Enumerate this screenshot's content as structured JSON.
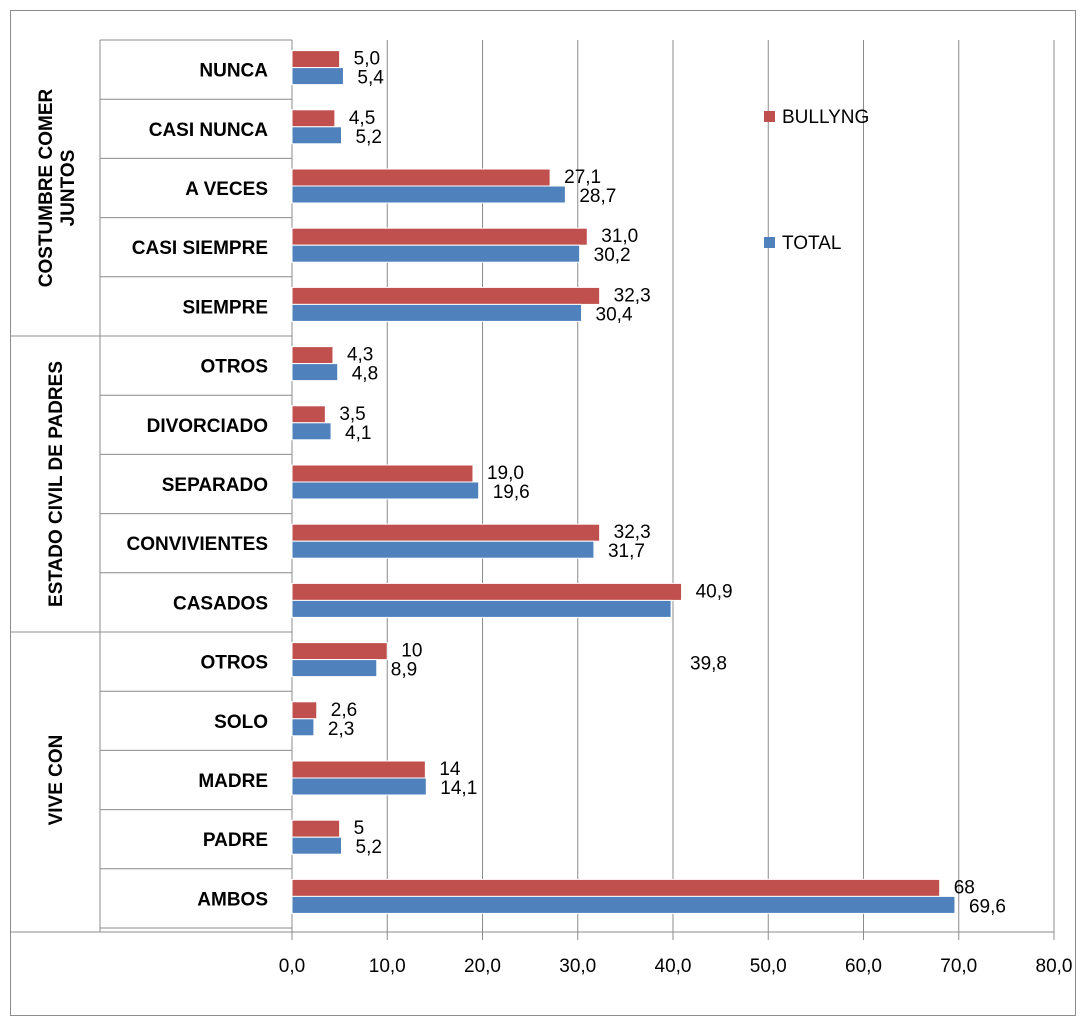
{
  "chart_data": {
    "type": "bar",
    "orientation": "horizontal",
    "groups": [
      {
        "label": "COSTUMBRE COMER JUNTOS",
        "categories": [
          "NUNCA",
          "CASI NUNCA",
          "A VECES",
          "CASI SIEMPRE",
          "SIEMPRE"
        ]
      },
      {
        "label": "ESTADO CIVIL DE PADRES",
        "categories": [
          "OTROS",
          "DIVORCIADO",
          "SEPARADO",
          "CONVIVIENTES",
          "CASADOS"
        ]
      },
      {
        "label": "VIVE CON",
        "categories": [
          "OTROS",
          "SOLO",
          "MADRE",
          "PADRE",
          "AMBOS"
        ]
      }
    ],
    "categories": [
      "NUNCA",
      "CASI NUNCA",
      "A VECES",
      "CASI SIEMPRE",
      "SIEMPRE",
      "OTROS",
      "DIVORCIADO",
      "SEPARADO",
      "CONVIVIENTES",
      "CASADOS",
      "OTROS",
      "SOLO",
      "MADRE",
      "PADRE",
      "AMBOS"
    ],
    "series": [
      {
        "name": "BULLYNG",
        "color": "#c0504d",
        "values": [
          5.0,
          4.5,
          27.1,
          31.0,
          32.3,
          4.3,
          3.5,
          19.0,
          32.3,
          40.9,
          10,
          2.6,
          14,
          5,
          68
        ],
        "labels": [
          "5,0",
          "4,5",
          "27,1",
          "31,0",
          "32,3",
          "4,3",
          "3,5",
          "19,0",
          "32,3",
          "40,9",
          "10",
          "2,6",
          "14",
          "5",
          "68"
        ]
      },
      {
        "name": "TOTAL",
        "color": "#4f81bd",
        "values": [
          5.4,
          5.2,
          28.7,
          30.2,
          30.4,
          4.8,
          4.1,
          19.6,
          31.7,
          39.8,
          8.9,
          2.3,
          14.1,
          5.2,
          69.6
        ],
        "labels": [
          "5,4",
          "5,2",
          "28,7",
          "30,2",
          "30,4",
          "4,8",
          "4,1",
          "19,6",
          "31,7",
          "39,8",
          "8,9",
          "2,3",
          "14,1",
          "5,2",
          "69,6"
        ]
      }
    ],
    "xlim": [
      0,
      80
    ],
    "xticks": [
      "0,0",
      "10,0",
      "20,0",
      "30,0",
      "40,0",
      "50,0",
      "60,0",
      "70,0",
      "80,0"
    ],
    "grid": true,
    "legend": {
      "position": "right",
      "entries": [
        "BULLYNG",
        "TOTAL"
      ]
    }
  }
}
